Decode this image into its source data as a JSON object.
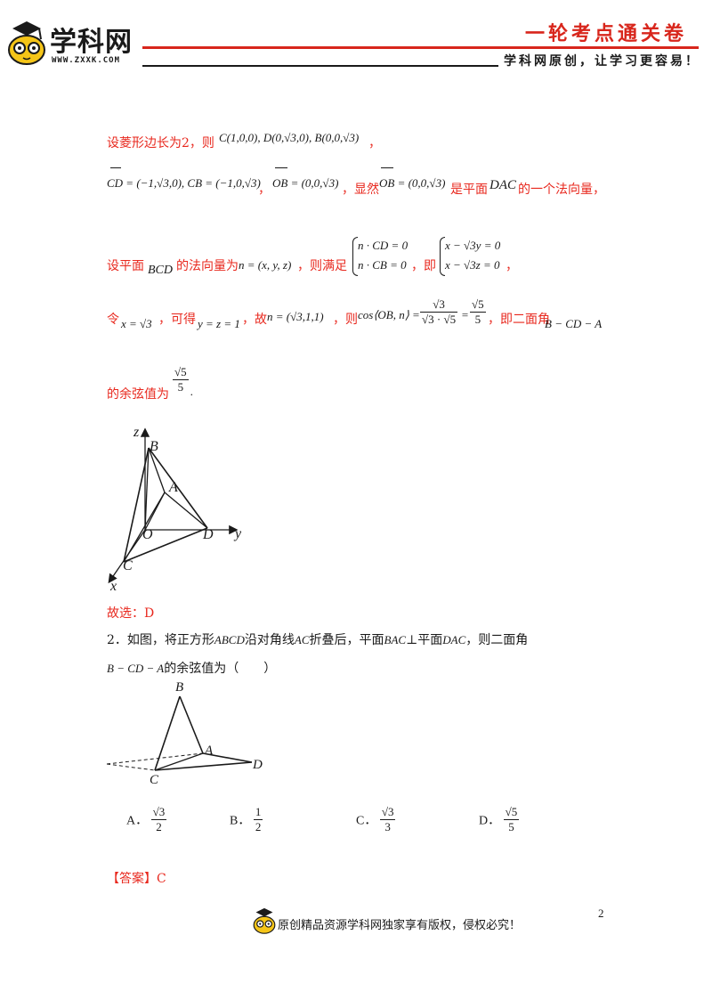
{
  "header": {
    "logo_text": "学科网",
    "logo_url": "WWW.ZXXK.COM",
    "title": "一轮考点通关卷",
    "slogan": "学科网原创，让学习更容易！"
  },
  "solution": {
    "line1_text": "设菱形边长为2，则",
    "line1_math": "C(1,0,0), D(0,√3,0), B(0,0,√3)",
    "line1_end": "，",
    "line2_math_a": "CD = (−1,√3,0), CB = (−1,0,√3)",
    "line2_sep": "，",
    "line2_math_b": "OB = (0,0,√3)",
    "line2_mid": "，显然",
    "line2_math_c": "OB = (0,0,√3)",
    "line2_end": "是平面",
    "line2_plane": "DAC",
    "line2_tail": "的一个法向量，",
    "line3_text": "设平面",
    "line3_plane": "BCD",
    "line3_mid": "的法向量为",
    "line3_vec": "n = (x, y, z)",
    "line3_cond_text": "，则满足",
    "line3_sys1_a": "n · CD = 0",
    "line3_sys1_b": "n · CB = 0",
    "line3_ie": "，即",
    "line3_sys2_a": "x − √3y = 0",
    "line3_sys2_b": "x − √3z = 0",
    "line3_end": "，",
    "line4_ling": "令",
    "line4_x": "x = √3",
    "line4_kede": "，可得",
    "line4_yz": "y = z = 1",
    "line4_gu": "，故",
    "line4_n": "n = (√3,1,1)",
    "line4_ze": "，则",
    "line4_cos": "cos⟨OB, n⟩ =",
    "line4_frac1_num": "√3",
    "line4_frac1_den": "√3 · √5",
    "line4_eq": "=",
    "line4_frac2_num": "√5",
    "line4_frac2_den": "5",
    "line4_tail": "，即二面角",
    "line4_angle": "B − CD − A",
    "line5_text": "的余弦值为",
    "line5_num": "√5",
    "line5_den": "5",
    "line5_end": ".",
    "answer_choice": "故选：D"
  },
  "figure1": {
    "labels": {
      "z": "z",
      "B": "B",
      "A": "A",
      "O": "O",
      "D": "D",
      "y": "y",
      "C": "C",
      "x": "x"
    }
  },
  "question2": {
    "number": "2．",
    "text_a": "如图，将正方形",
    "sq": "ABCD",
    "text_b": "沿对角线",
    "diag": "AC",
    "text_c": "折叠后，平面",
    "plane1": "BAC",
    "perp": "⊥",
    "text_d": "平面",
    "plane2": "DAC",
    "text_e": "，则二面角",
    "angle": "B − CD − A",
    "text_f": "的余弦值为（　　）",
    "figure_labels": {
      "B": "B",
      "A": "A",
      "D": "D",
      "C": "C"
    },
    "options": [
      {
        "letter": "A．",
        "num": "√3",
        "den": "2"
      },
      {
        "letter": "B．",
        "num": "1",
        "den": "2"
      },
      {
        "letter": "C．",
        "num": "√3",
        "den": "3"
      },
      {
        "letter": "D．",
        "num": "√5",
        "den": "5"
      }
    ],
    "answer": "【答案】C"
  },
  "footer": {
    "page_number": "2",
    "copyright": "原创精品资源学科网独家享有版权，侵权必究！"
  },
  "colors": {
    "brand_red": "#d8261c",
    "answer_red": "#e8281e",
    "logo_yellow": "#f5c518"
  }
}
